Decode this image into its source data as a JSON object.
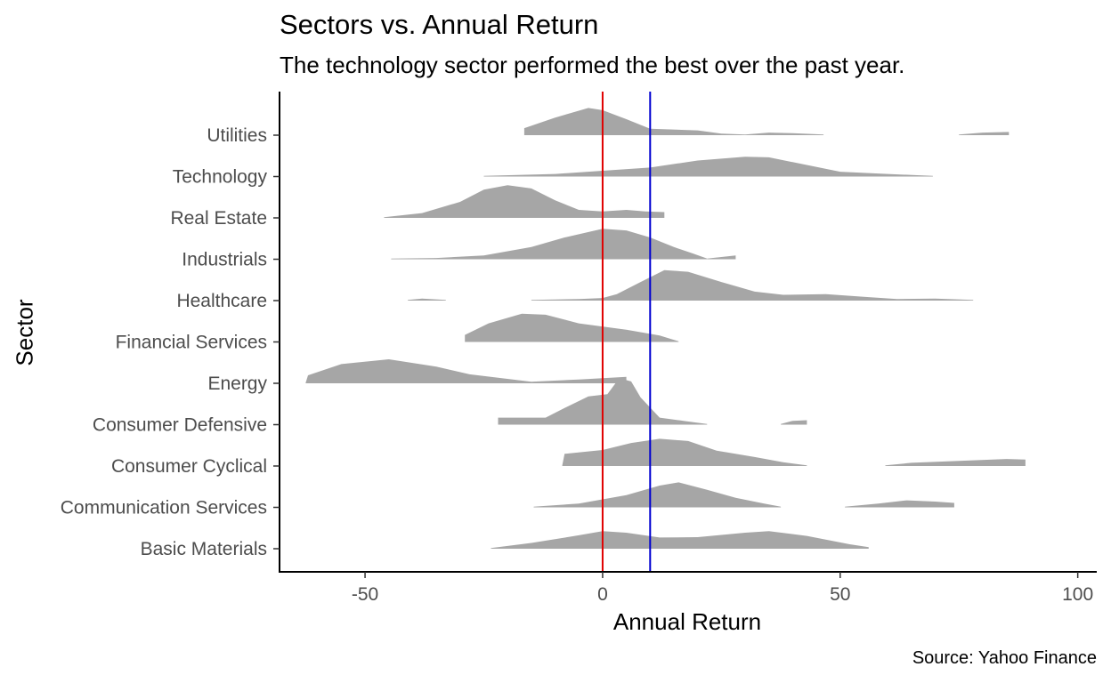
{
  "chart_data": {
    "type": "ridgeline",
    "title": "Sectors vs. Annual Return",
    "subtitle": "The technology sector performed the best over the past year.",
    "caption": "Source: Yahoo Finance",
    "xlabel": "Annual Return",
    "ylabel": "Sector",
    "xlim": [
      -68,
      104
    ],
    "xticks": [
      -50,
      0,
      50,
      100
    ],
    "grid": false,
    "fill_color": "#a6a6a6",
    "reference_lines": [
      {
        "x": 0,
        "color": "#e00000"
      },
      {
        "x": 10,
        "color": "#0000d0"
      }
    ],
    "categories": [
      "Basic Materials",
      "Communication Services",
      "Consumer Cyclical",
      "Consumer Defensive",
      "Energy",
      "Financial Services",
      "Healthcare",
      "Industrials",
      "Real Estate",
      "Technology",
      "Utilities"
    ],
    "series": [
      {
        "segments": [
          [
            [
              -23.5,
              0.02
            ],
            [
              -15,
              0.18
            ],
            [
              -5,
              0.42
            ],
            [
              0,
              0.55
            ],
            [
              5,
              0.5
            ],
            [
              12,
              0.35
            ],
            [
              20,
              0.36
            ],
            [
              30,
              0.5
            ],
            [
              35,
              0.55
            ],
            [
              43,
              0.4
            ],
            [
              52,
              0.14
            ],
            [
              56,
              0.05
            ]
          ]
        ]
      },
      {
        "segments": [
          [
            [
              -14.5,
              0.02
            ],
            [
              -5,
              0.12
            ],
            [
              5,
              0.38
            ],
            [
              12,
              0.68
            ],
            [
              16,
              0.78
            ],
            [
              22,
              0.55
            ],
            [
              28,
              0.3
            ],
            [
              34,
              0.12
            ],
            [
              37.5,
              0.02
            ]
          ],
          [
            [
              51,
              0.02
            ],
            [
              58,
              0.12
            ],
            [
              64,
              0.22
            ],
            [
              70,
              0.18
            ],
            [
              74,
              0.14
            ]
          ]
        ]
      },
      {
        "segments": [
          [
            [
              -8.5,
              0.02
            ],
            [
              -8,
              0.38
            ],
            [
              0,
              0.5
            ],
            [
              6,
              0.72
            ],
            [
              12,
              0.85
            ],
            [
              18,
              0.78
            ],
            [
              24,
              0.48
            ],
            [
              32,
              0.28
            ],
            [
              38,
              0.12
            ],
            [
              43,
              0.02
            ]
          ],
          [
            [
              59.5,
              0.02
            ],
            [
              65,
              0.1
            ],
            [
              75,
              0.16
            ],
            [
              85,
              0.22
            ],
            [
              89,
              0.2
            ]
          ]
        ]
      },
      {
        "segments": [
          [
            [
              -22,
              0.02
            ],
            [
              -22,
              0.22
            ],
            [
              -12,
              0.22
            ],
            [
              -8,
              0.52
            ],
            [
              -3,
              0.88
            ],
            [
              1,
              0.95
            ],
            [
              3.5,
              1.45
            ],
            [
              6,
              1.35
            ],
            [
              8,
              0.85
            ],
            [
              12,
              0.22
            ],
            [
              17,
              0.12
            ],
            [
              22,
              0.02
            ]
          ],
          [
            [
              37.5,
              0.02
            ],
            [
              40,
              0.12
            ],
            [
              43,
              0.14
            ],
            [
              43,
              0.02
            ]
          ]
        ]
      },
      {
        "segments": [
          [
            [
              -62.5,
              0.02
            ],
            [
              -62,
              0.25
            ],
            [
              -55,
              0.6
            ],
            [
              -45,
              0.75
            ],
            [
              -35,
              0.52
            ],
            [
              -28,
              0.28
            ],
            [
              -15,
              0.05
            ],
            [
              -5,
              0.12
            ],
            [
              5,
              0.2
            ],
            [
              5,
              0.02
            ]
          ]
        ]
      },
      {
        "segments": [
          [
            [
              -29,
              0.02
            ],
            [
              -29,
              0.22
            ],
            [
              -24,
              0.58
            ],
            [
              -17,
              0.88
            ],
            [
              -12,
              0.85
            ],
            [
              -5,
              0.58
            ],
            [
              5,
              0.38
            ],
            [
              12,
              0.2
            ],
            [
              16,
              0.02
            ]
          ]
        ]
      },
      {
        "segments": [
          [
            [
              -41,
              0.02
            ],
            [
              -38,
              0.06
            ],
            [
              -33,
              0.02
            ]
          ],
          [
            [
              -15,
              0.02
            ],
            [
              -5,
              0.05
            ],
            [
              0,
              0.08
            ],
            [
              3,
              0.2
            ],
            [
              8,
              0.58
            ],
            [
              13,
              0.95
            ],
            [
              18,
              0.9
            ],
            [
              25,
              0.58
            ],
            [
              32,
              0.28
            ],
            [
              38,
              0.18
            ],
            [
              47,
              0.2
            ],
            [
              55,
              0.12
            ],
            [
              62,
              0.05
            ],
            [
              70,
              0.06
            ],
            [
              78,
              0.02
            ]
          ]
        ]
      },
      {
        "segments": [
          [
            [
              -44.5,
              0.02
            ],
            [
              -35,
              0.04
            ],
            [
              -25,
              0.12
            ],
            [
              -15,
              0.38
            ],
            [
              -8,
              0.68
            ],
            [
              0,
              0.95
            ],
            [
              5,
              0.9
            ],
            [
              10,
              0.68
            ],
            [
              15,
              0.38
            ],
            [
              19,
              0.18
            ],
            [
              22,
              0.02
            ]
          ],
          [
            [
              22,
              0.02
            ],
            [
              28,
              0.12
            ],
            [
              28,
              0.02
            ]
          ]
        ]
      },
      {
        "segments": [
          [
            [
              -46,
              0.02
            ],
            [
              -38,
              0.15
            ],
            [
              -30,
              0.5
            ],
            [
              -25,
              0.88
            ],
            [
              -20,
              1.02
            ],
            [
              -15,
              0.92
            ],
            [
              -10,
              0.55
            ],
            [
              -5,
              0.25
            ],
            [
              0,
              0.2
            ],
            [
              5,
              0.25
            ],
            [
              9,
              0.2
            ],
            [
              13,
              0.18
            ],
            [
              13,
              0.02
            ]
          ]
        ]
      },
      {
        "segments": [
          [
            [
              -25,
              0.02
            ],
            [
              -10,
              0.08
            ],
            [
              0,
              0.18
            ],
            [
              10,
              0.28
            ],
            [
              20,
              0.5
            ],
            [
              30,
              0.62
            ],
            [
              35,
              0.6
            ],
            [
              40,
              0.45
            ],
            [
              50,
              0.15
            ],
            [
              60,
              0.08
            ],
            [
              69.5,
              0.02
            ]
          ]
        ]
      },
      {
        "segments": [
          [
            [
              -16.5,
              0.02
            ],
            [
              -16.5,
              0.22
            ],
            [
              -10,
              0.55
            ],
            [
              -3,
              0.85
            ],
            [
              0,
              0.78
            ],
            [
              5,
              0.5
            ],
            [
              10,
              0.2
            ],
            [
              20,
              0.15
            ],
            [
              25,
              0.05
            ],
            [
              30,
              0.02
            ],
            [
              35,
              0.08
            ],
            [
              40,
              0.06
            ],
            [
              46.5,
              0.02
            ]
          ],
          [
            [
              75,
              0.02
            ],
            [
              80,
              0.08
            ],
            [
              85.5,
              0.1
            ],
            [
              85.5,
              0.02
            ]
          ]
        ]
      }
    ]
  }
}
